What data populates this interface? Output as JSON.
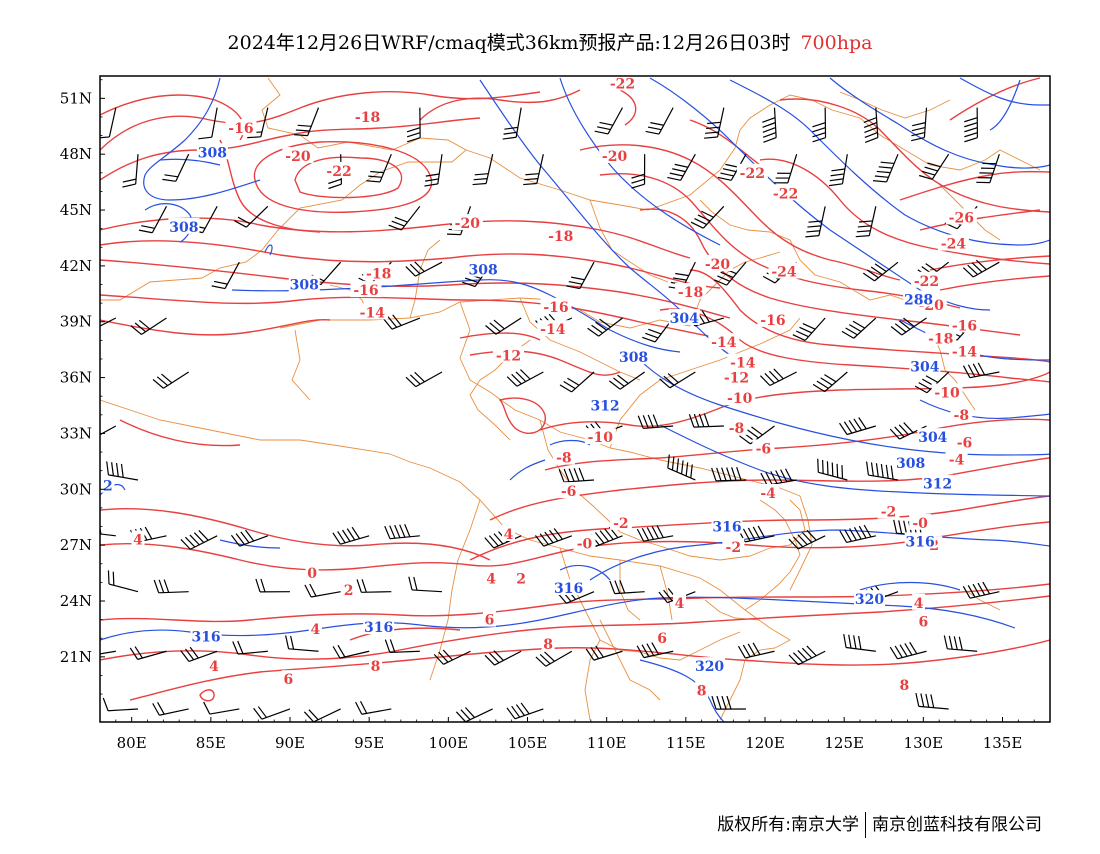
{
  "title": {
    "main": "2024年12月26日WRF/cmaq模式36km预报产品:12月26日03时",
    "level": "700hpa"
  },
  "axes": {
    "lon_labels": [
      "80E",
      "85E",
      "90E",
      "95E",
      "100E",
      "105E",
      "110E",
      "115E",
      "120E",
      "125E",
      "130E",
      "135E"
    ],
    "lat_labels": [
      "51N",
      "48N",
      "45N",
      "42N",
      "39N",
      "36N",
      "33N",
      "30N",
      "27N",
      "24N",
      "21N"
    ],
    "lon_range": [
      78,
      138
    ],
    "lat_range": [
      17.5,
      52.2
    ]
  },
  "colors": {
    "temperature": "#e84040",
    "geopotential": "#2850e0",
    "boundary": "#e89040",
    "barb": "#000000"
  },
  "temperature_labels": [
    {
      "t": "-16",
      "lon": 86.9,
      "lat": 49.4
    },
    {
      "t": "-18",
      "lon": 94.9,
      "lat": 50.0
    },
    {
      "t": "-20",
      "lon": 90.5,
      "lat": 47.9
    },
    {
      "t": "-22",
      "lon": 93.1,
      "lat": 47.1
    },
    {
      "t": "-22",
      "lon": 111.0,
      "lat": 51.8
    },
    {
      "t": "-20",
      "lon": 110.5,
      "lat": 47.9
    },
    {
      "t": "-22",
      "lon": 119.2,
      "lat": 47.0
    },
    {
      "t": "-22",
      "lon": 121.3,
      "lat": 45.9
    },
    {
      "t": "-20",
      "lon": 101.2,
      "lat": 44.3
    },
    {
      "t": "-18",
      "lon": 107.1,
      "lat": 43.6
    },
    {
      "t": "-18",
      "lon": 95.6,
      "lat": 41.6
    },
    {
      "t": "-16",
      "lon": 94.8,
      "lat": 40.7
    },
    {
      "t": "-14",
      "lon": 95.2,
      "lat": 39.5
    },
    {
      "t": "-16",
      "lon": 106.8,
      "lat": 39.8
    },
    {
      "t": "-14",
      "lon": 106.6,
      "lat": 38.6
    },
    {
      "t": "-12",
      "lon": 103.8,
      "lat": 37.2
    },
    {
      "t": "-20",
      "lon": 117.0,
      "lat": 42.1
    },
    {
      "t": "-18",
      "lon": 115.3,
      "lat": 40.6
    },
    {
      "t": "-16",
      "lon": 120.5,
      "lat": 39.1
    },
    {
      "t": "-14",
      "lon": 117.4,
      "lat": 37.9
    },
    {
      "t": "-14",
      "lon": 118.6,
      "lat": 36.8
    },
    {
      "t": "-12",
      "lon": 118.2,
      "lat": 36.0
    },
    {
      "t": "-10",
      "lon": 118.4,
      "lat": 34.9
    },
    {
      "t": "-8",
      "lon": 118.2,
      "lat": 33.3
    },
    {
      "t": "-24",
      "lon": 121.2,
      "lat": 41.7
    },
    {
      "t": "-26",
      "lon": 132.4,
      "lat": 44.6
    },
    {
      "t": "-24",
      "lon": 131.9,
      "lat": 43.2
    },
    {
      "t": "-22",
      "lon": 130.2,
      "lat": 41.2
    },
    {
      "t": "-20",
      "lon": 130.5,
      "lat": 39.9
    },
    {
      "t": "-18",
      "lon": 131.1,
      "lat": 38.1
    },
    {
      "t": "-16",
      "lon": 132.6,
      "lat": 38.8
    },
    {
      "t": "-14",
      "lon": 132.6,
      "lat": 37.4
    },
    {
      "t": "-10",
      "lon": 131.5,
      "lat": 35.2
    },
    {
      "t": "-8",
      "lon": 132.4,
      "lat": 34.0
    },
    {
      "t": "-6",
      "lon": 132.6,
      "lat": 32.5
    },
    {
      "t": "-4",
      "lon": 132.1,
      "lat": 31.6
    },
    {
      "t": "-10",
      "lon": 109.6,
      "lat": 32.8
    },
    {
      "t": "-8",
      "lon": 107.3,
      "lat": 31.7
    },
    {
      "t": "-6",
      "lon": 107.6,
      "lat": 29.9
    },
    {
      "t": "-6",
      "lon": 119.9,
      "lat": 32.2
    },
    {
      "t": "-4",
      "lon": 120.2,
      "lat": 29.8
    },
    {
      "t": "-2",
      "lon": 110.9,
      "lat": 28.2
    },
    {
      "t": "-0",
      "lon": 108.6,
      "lat": 27.1
    },
    {
      "t": "-2",
      "lon": 118.0,
      "lat": 26.9
    },
    {
      "t": "-2",
      "lon": 127.8,
      "lat": 28.8
    },
    {
      "t": "-0",
      "lon": 129.8,
      "lat": 28.2
    },
    {
      "t": "-2",
      "lon": 130.5,
      "lat": 27.0
    },
    {
      "t": "2",
      "lon": 93.7,
      "lat": 24.6
    },
    {
      "t": "0",
      "lon": 91.4,
      "lat": 25.5
    },
    {
      "t": "4",
      "lon": 103.8,
      "lat": 27.6
    },
    {
      "t": "4",
      "lon": 102.7,
      "lat": 25.2
    },
    {
      "t": "2",
      "lon": 104.6,
      "lat": 25.2
    },
    {
      "t": "6",
      "lon": 102.6,
      "lat": 23.0
    },
    {
      "t": "4",
      "lon": 114.6,
      "lat": 23.9
    },
    {
      "t": "4",
      "lon": 129.7,
      "lat": 23.9
    },
    {
      "t": "6",
      "lon": 130.0,
      "lat": 22.9
    },
    {
      "t": "8",
      "lon": 106.3,
      "lat": 21.7
    },
    {
      "t": "4",
      "lon": 91.6,
      "lat": 22.5
    },
    {
      "t": "6",
      "lon": 89.9,
      "lat": 19.8
    },
    {
      "t": "8",
      "lon": 95.4,
      "lat": 20.5
    },
    {
      "t": "6",
      "lon": 113.5,
      "lat": 22.0
    },
    {
      "t": "8",
      "lon": 116.0,
      "lat": 19.2
    },
    {
      "t": "8",
      "lon": 128.8,
      "lat": 19.5
    },
    {
      "t": "4",
      "lon": 80.4,
      "lat": 27.3
    },
    {
      "t": "4",
      "lon": 85.2,
      "lat": 20.5
    }
  ],
  "height_labels": [
    {
      "t": "308",
      "lon": 85.1,
      "lat": 48.1
    },
    {
      "t": "308",
      "lon": 83.3,
      "lat": 44.1
    },
    {
      "t": "308",
      "lon": 90.9,
      "lat": 41.0
    },
    {
      "t": "308",
      "lon": 102.2,
      "lat": 41.8
    },
    {
      "t": "304",
      "lon": 114.9,
      "lat": 39.2
    },
    {
      "t": "308",
      "lon": 111.7,
      "lat": 37.1
    },
    {
      "t": "312",
      "lon": 109.9,
      "lat": 34.5
    },
    {
      "t": "308",
      "lon": 129.2,
      "lat": 31.4
    },
    {
      "t": "312",
      "lon": 130.9,
      "lat": 30.3
    },
    {
      "t": "304",
      "lon": 130.6,
      "lat": 32.8
    },
    {
      "t": "316",
      "lon": 117.6,
      "lat": 28.0
    },
    {
      "t": "316",
      "lon": 129.8,
      "lat": 27.2
    },
    {
      "t": "316",
      "lon": 107.6,
      "lat": 24.7
    },
    {
      "t": "320",
      "lon": 126.6,
      "lat": 24.1
    },
    {
      "t": "316",
      "lon": 84.7,
      "lat": 22.1
    },
    {
      "t": "316",
      "lon": 95.6,
      "lat": 22.6
    },
    {
      "t": "320",
      "lon": 116.5,
      "lat": 20.5
    },
    {
      "t": "2",
      "lon": 78.5,
      "lat": 30.2
    },
    {
      "t": "288",
      "lon": 129.7,
      "lat": 40.2
    },
    {
      "t": "304",
      "lon": 130.1,
      "lat": 36.6
    }
  ],
  "footer": {
    "copyright": "版权所有:南京大学",
    "company": "南京创蓝科技有限公司"
  }
}
